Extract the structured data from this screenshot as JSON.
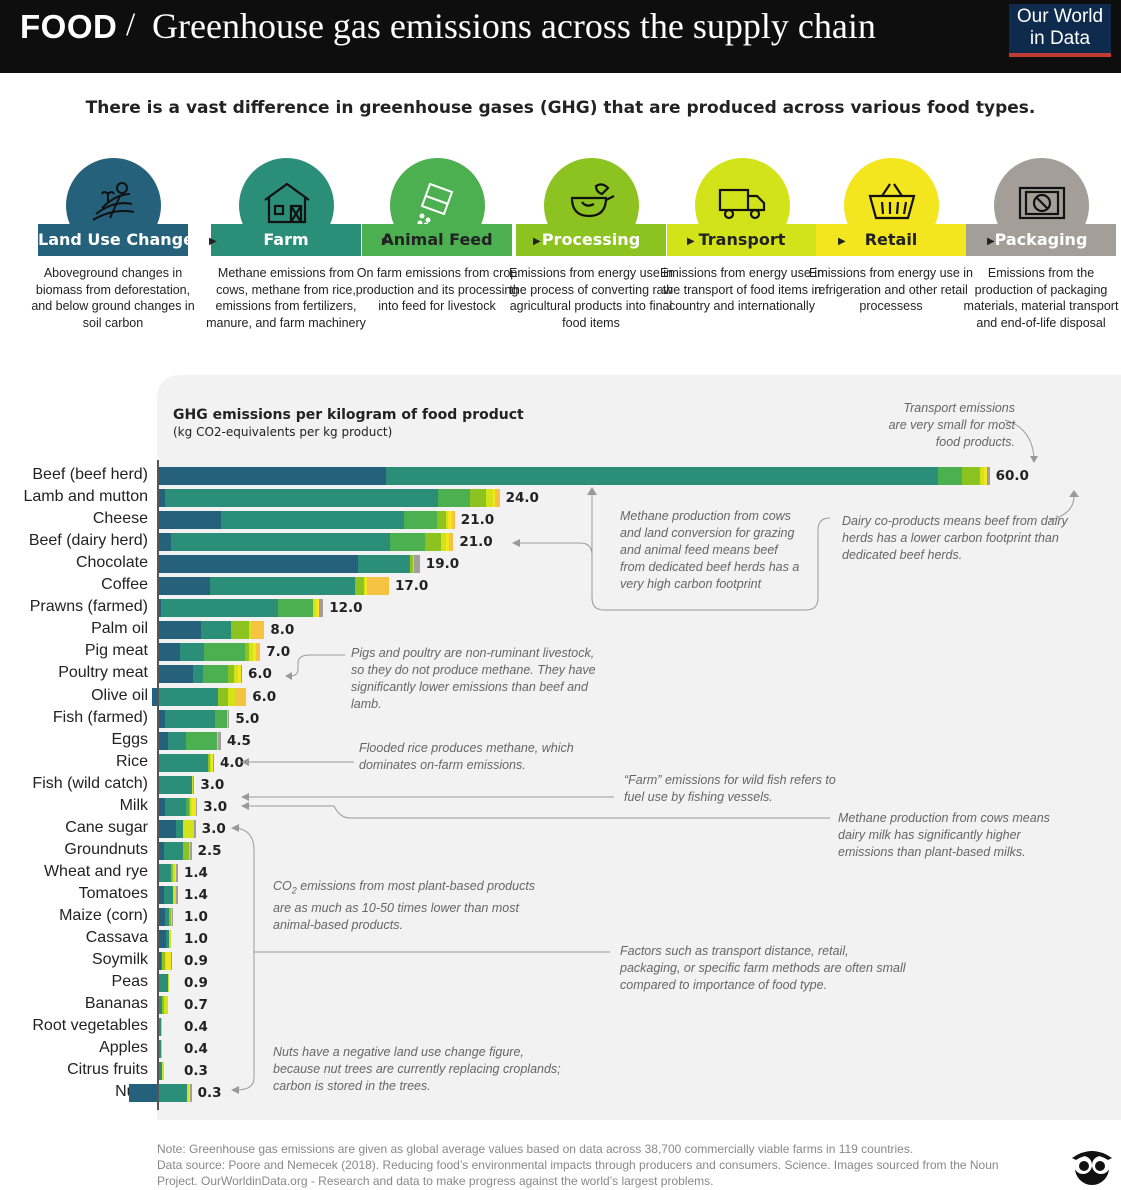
{
  "header": {
    "food": "FOOD",
    "slash": "/",
    "title": "Greenhouse gas emissions across the supply chain",
    "owid_line1": "Our World",
    "owid_line2": "in Data"
  },
  "subtitle": "There is a vast difference in greenhouse gases (GHG) that are produced across various food types.",
  "stages": [
    {
      "label": "Land Use Change",
      "icon": "land-icon",
      "color": "#25617a",
      "text": "#ffffff",
      "desc": "Aboveground changes in biomass from deforestation, and below ground changes in soil carbon"
    },
    {
      "label": "Farm",
      "icon": "barn-icon",
      "color": "#2b8e78",
      "text": "#ffffff",
      "desc": "Methane emissions from cows, methane from rice, emissions from fertilizers, manure, and farm machinery"
    },
    {
      "label": "Animal Feed",
      "icon": "feed-bag-icon",
      "color": "#4caf50",
      "text": "#222222",
      "desc": "On farm emissions from crop production and its processing into feed for livestock"
    },
    {
      "label": "Processing",
      "icon": "processing-icon",
      "color": "#8cc320",
      "text": "#ffffff",
      "desc": "Emissions from energy use in the process of converting raw agricultural products into final food items"
    },
    {
      "label": "Transport",
      "icon": "truck-icon",
      "color": "#d2e31a",
      "text": "#222222",
      "desc": "Emissions from energy use in the transport of food items in country and internationally"
    },
    {
      "label": "Retail",
      "icon": "basket-icon",
      "color": "#f3e51e",
      "text": "#222222",
      "desc": "Emissions from energy use in refrigeration and other retail processess"
    },
    {
      "label": "Packaging",
      "icon": "package-icon",
      "color": "#a39e98",
      "text": "#ffffff",
      "desc": "Emissions from the production of packaging materials, material transport and end-of-life disposal"
    }
  ],
  "chart_data": {
    "type": "bar",
    "orientation": "horizontal",
    "stacked": true,
    "title": "GHG emissions per kilogram of food product",
    "unit": "(kg CO2-equivalents per kg product)",
    "series_colors": [
      "#25617a",
      "#2b8e78",
      "#4caf50",
      "#8cc320",
      "#d2e31a",
      "#f3e51e",
      "#a39e98"
    ],
    "series_names": [
      "Land Use Change",
      "Farm",
      "Animal Feed",
      "Processing",
      "Transport",
      "Retail",
      "Packaging"
    ],
    "extra_colors": {
      "processing_orange": "#f5c242"
    },
    "rows": [
      {
        "name": "Beef (beef herd)",
        "label": "60.0",
        "segments": [
          16.3,
          39.4,
          1.7,
          1.3,
          0.3,
          0.2,
          0.2
        ]
      },
      {
        "name": "Lamb and mutton",
        "label": "24.0",
        "segments": [
          0.5,
          19.5,
          2.3,
          1.1,
          0.5,
          0.2,
          0.3
        ]
      },
      {
        "name": "Cheese",
        "label": "21.0",
        "segments": [
          4.5,
          13.1,
          2.3,
          0.7,
          0.1,
          0.3,
          0.2
        ]
      },
      {
        "name": "Beef (dairy herd)",
        "label": "21.0",
        "segments": [
          0.9,
          15.7,
          2.5,
          1.1,
          0.4,
          0.2,
          0.3
        ]
      },
      {
        "name": "Chocolate",
        "label": "19.0",
        "segments": [
          14.3,
          3.7,
          0.0,
          0.2,
          0.1,
          0.0,
          0.4
        ]
      },
      {
        "name": "Coffee",
        "label": "17.0",
        "segments": [
          3.7,
          10.4,
          0.0,
          0.6,
          0.1,
          0.1,
          1.6
        ]
      },
      {
        "name": "Prawns (farmed)",
        "label": "12.0",
        "segments": [
          0.2,
          8.4,
          2.5,
          0.0,
          0.2,
          0.2,
          0.3
        ]
      },
      {
        "name": "Palm oil",
        "label": "8.0",
        "segments": [
          3.1,
          2.1,
          0.0,
          1.3,
          0.2,
          0.0,
          0.9
        ]
      },
      {
        "name": "Pig meat",
        "label": "7.0",
        "segments": [
          1.6,
          1.7,
          2.9,
          0.3,
          0.3,
          0.2,
          0.3
        ]
      },
      {
        "name": "Poultry meat",
        "label": "6.0",
        "segments": [
          2.5,
          0.7,
          1.8,
          0.4,
          0.3,
          0.2,
          0.1
        ]
      },
      {
        "name": "Olive oil",
        "label": "6.0",
        "segments": [
          -0.4,
          4.3,
          0.0,
          0.7,
          0.5,
          0.0,
          0.8
        ]
      },
      {
        "name": "Fish (farmed)",
        "label": "5.0",
        "segments": [
          0.5,
          3.6,
          0.8,
          0.0,
          0.1,
          0.0,
          0.1
        ]
      },
      {
        "name": "Eggs",
        "label": "4.5",
        "segments": [
          0.7,
          1.3,
          2.2,
          0.0,
          0.1,
          0.0,
          0.2
        ]
      },
      {
        "name": "Rice",
        "label": "4.0",
        "segments": [
          0.0,
          3.6,
          0.0,
          0.1,
          0.1,
          0.1,
          0.1
        ]
      },
      {
        "name": "Fish (wild catch)",
        "label": "3.0",
        "segments": [
          0.0,
          2.4,
          0.0,
          0.0,
          0.1,
          0.0,
          0.1
        ]
      },
      {
        "name": "Milk",
        "label": "3.0",
        "segments": [
          0.5,
          1.5,
          0.2,
          0.1,
          0.1,
          0.3,
          0.1
        ]
      },
      {
        "name": "Cane sugar",
        "label": "3.0",
        "segments": [
          1.3,
          0.5,
          0.0,
          0.0,
          0.8,
          0.0,
          0.1
        ]
      },
      {
        "name": "Groundnuts",
        "label": "2.5",
        "segments": [
          0.4,
          1.4,
          0.0,
          0.4,
          0.1,
          0.0,
          0.1
        ]
      },
      {
        "name": "Wheat and rye",
        "label": "1.4",
        "segments": [
          0.1,
          0.8,
          0.0,
          0.2,
          0.1,
          0.1,
          0.1
        ]
      },
      {
        "name": "Tomatoes",
        "label": "1.4",
        "segments": [
          0.4,
          0.7,
          0.0,
          0.0,
          0.2,
          0.0,
          0.1
        ]
      },
      {
        "name": "Maize (corn)",
        "label": "1.0",
        "segments": [
          0.5,
          0.3,
          0.0,
          0.1,
          0.1,
          0.0,
          0.1
        ]
      },
      {
        "name": "Cassava",
        "label": "1.0",
        "segments": [
          0.6,
          0.2,
          0.0,
          0.0,
          0.1,
          0.0,
          0.0
        ]
      },
      {
        "name": "Soymilk",
        "label": "0.9",
        "segments": [
          0.2,
          0.1,
          0.0,
          0.2,
          0.1,
          0.3,
          0.1
        ]
      },
      {
        "name": "Peas",
        "label": "0.9",
        "segments": [
          0.0,
          0.7,
          0.0,
          0.0,
          0.1,
          0.0,
          0.0
        ]
      },
      {
        "name": "Bananas",
        "label": "0.7",
        "segments": [
          0.0,
          0.3,
          0.0,
          0.1,
          0.3,
          0.0,
          0.0
        ]
      },
      {
        "name": "Root vegetables",
        "label": "0.4",
        "segments": [
          0.0,
          0.2,
          0.0,
          0.0,
          0.1,
          0.0,
          0.0
        ]
      },
      {
        "name": "Apples",
        "label": "0.4",
        "segments": [
          0.0,
          0.2,
          0.0,
          0.0,
          0.1,
          0.0,
          0.0
        ]
      },
      {
        "name": "Citrus fruits",
        "label": "0.3",
        "segments": [
          -0.1,
          0.3,
          0.0,
          0.0,
          0.1,
          0.0,
          0.0
        ]
      },
      {
        "name": "Nuts",
        "label": "0.3",
        "segments": [
          -2.1,
          2.1,
          0.0,
          0.0,
          0.1,
          0.1,
          0.1
        ]
      }
    ]
  },
  "annotations": {
    "transport": "Transport emissions are very small for most food products.",
    "beef": "Methane production from cows and land conversion for grazing and animal feed means beef from dedicated beef herds has a very high carbon footprint",
    "dairy_beef": "Dairy co-products means beef from dairy herds has a lower carbon footprint than dedicated beef herds.",
    "pigs": "Pigs and poultry are non-ruminant livestock, so they do not produce methane. They have significantly lower emissions than beef and lamb.",
    "rice": "Flooded rice produces methane, which dominates on-farm emissions.",
    "wild_fish": "“Farm” emissions for wild fish refers to fuel use by fishing vessels.",
    "milk": "Methane production from cows means dairy milk has significantly higher emissions than plant-based milks.",
    "plant_prefix": "CO",
    "plant_sub": "2",
    "plant_rest": " emissions from most plant-based products are as much as 10-50 times lower than most animal-based products.",
    "factors": "Factors such as transport distance, retail, packaging, or specific farm methods are often small compared to importance of food type.",
    "nuts": "Nuts have a negative land use change figure, because nut trees are currently replacing croplands; carbon is stored in the trees."
  },
  "footer": {
    "note": "Note: Greenhouse gas emissions are given as global average values based on data across 38,700 commercially viable farms in 119 countries.",
    "source": "Data source: Poore and Nemecek (2018). Reducing food’s environmental impacts through producers and consumers. Science. Images sourced from the Noun Project. OurWorldinData.org - Research and data to make progress against the world’s largest problems."
  }
}
